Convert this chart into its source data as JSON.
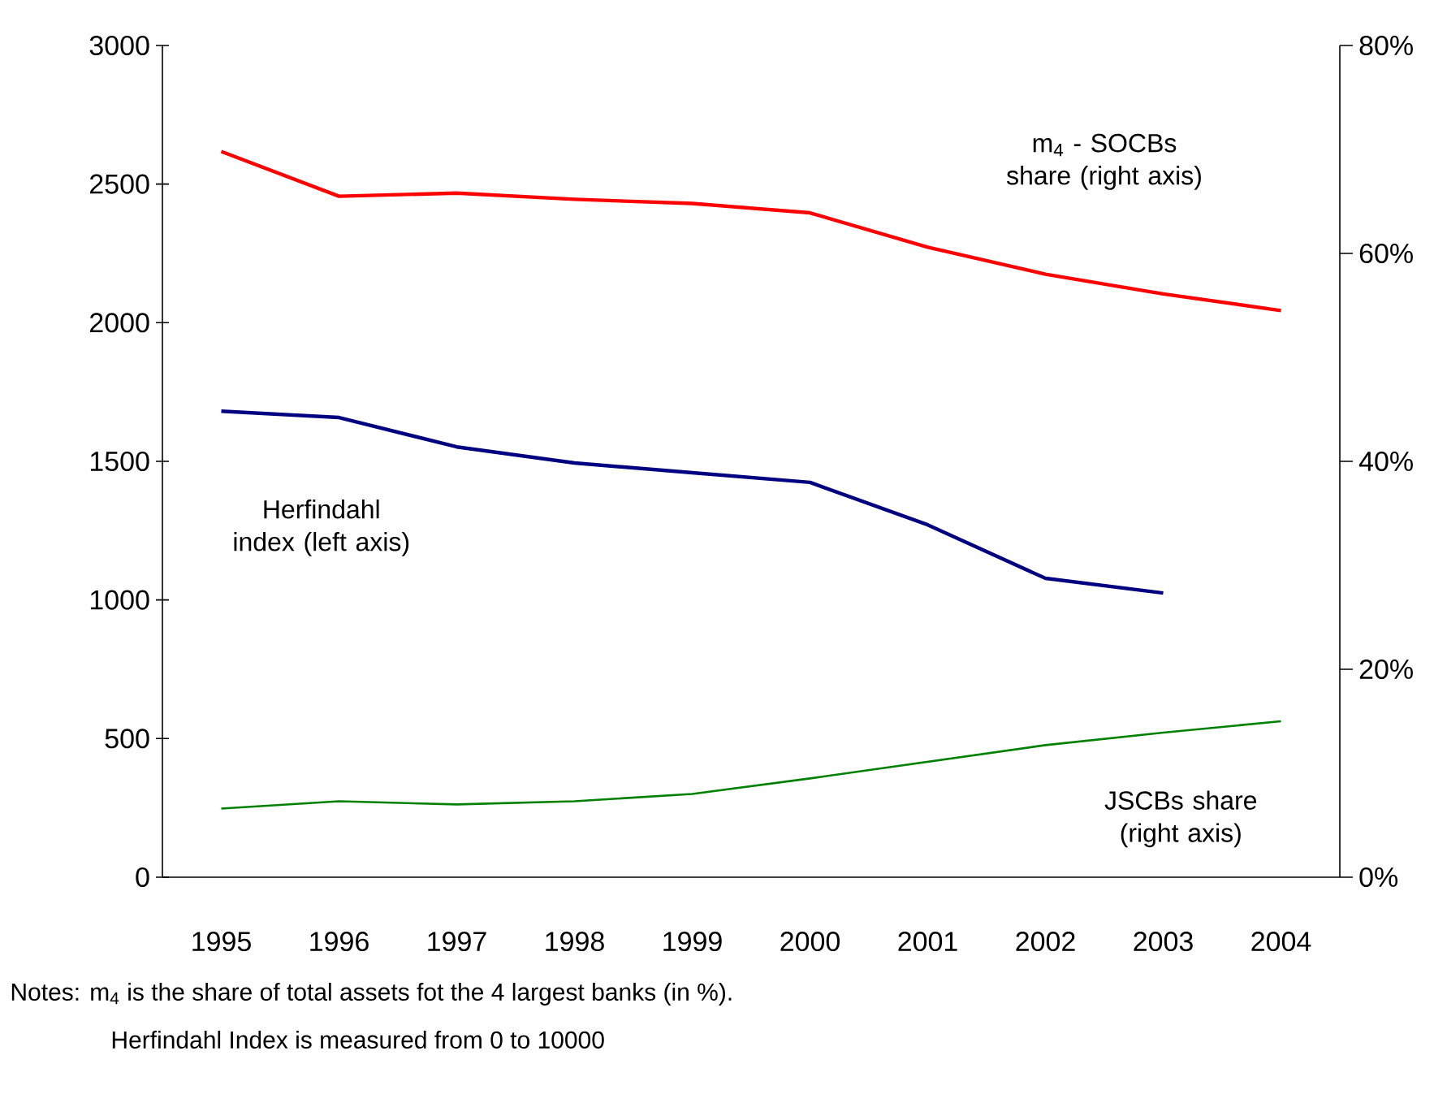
{
  "chart_data": {
    "type": "line",
    "categories": [
      "1995",
      "1996",
      "1997",
      "1998",
      "1999",
      "2000",
      "2001",
      "2002",
      "2003",
      "2004"
    ],
    "series": [
      {
        "name": "m$_{4}$ - SOCBs share (right axis)",
        "color": "#ff0000",
        "axis": "y2",
        "values": [
          69.8,
          65.5,
          65.8,
          65.2,
          64.8,
          63.9,
          60.6,
          58.0,
          56.1,
          54.5
        ]
      },
      {
        "name": "Herfindahl index (left axis)",
        "color": "#000080",
        "values": [
          1681,
          1658,
          1552,
          1494,
          1459,
          1424,
          1271,
          1078,
          1025,
          null
        ]
      },
      {
        "name": "JSCBs share (right axis)",
        "color": "#008000",
        "axis": "y2",
        "values": [
          6.6,
          7.3,
          7.0,
          7.3,
          8.0,
          9.5,
          11.1,
          12.7,
          13.9,
          15.0
        ]
      }
    ],
    "ylim": [
      0,
      3000
    ],
    "yticks": [
      0,
      500,
      1000,
      1500,
      2000,
      2500,
      3000
    ],
    "y2lim": [
      0,
      80
    ],
    "y2ticks": [
      {
        "value": 0,
        "label": "0%"
      },
      {
        "value": 20,
        "label": "20%"
      },
      {
        "value": 40,
        "label": "40%"
      },
      {
        "value": 60,
        "label": "60%"
      },
      {
        "value": 80,
        "label": "80%"
      }
    ],
    "marker": "none",
    "line_style": "solid",
    "annotations": [
      "Notes:  m$_{4}$ is the share of total assets fot the 4 largest banks (in %).",
      "Herfindahl Index is measured from 0 to 10000"
    ]
  }
}
